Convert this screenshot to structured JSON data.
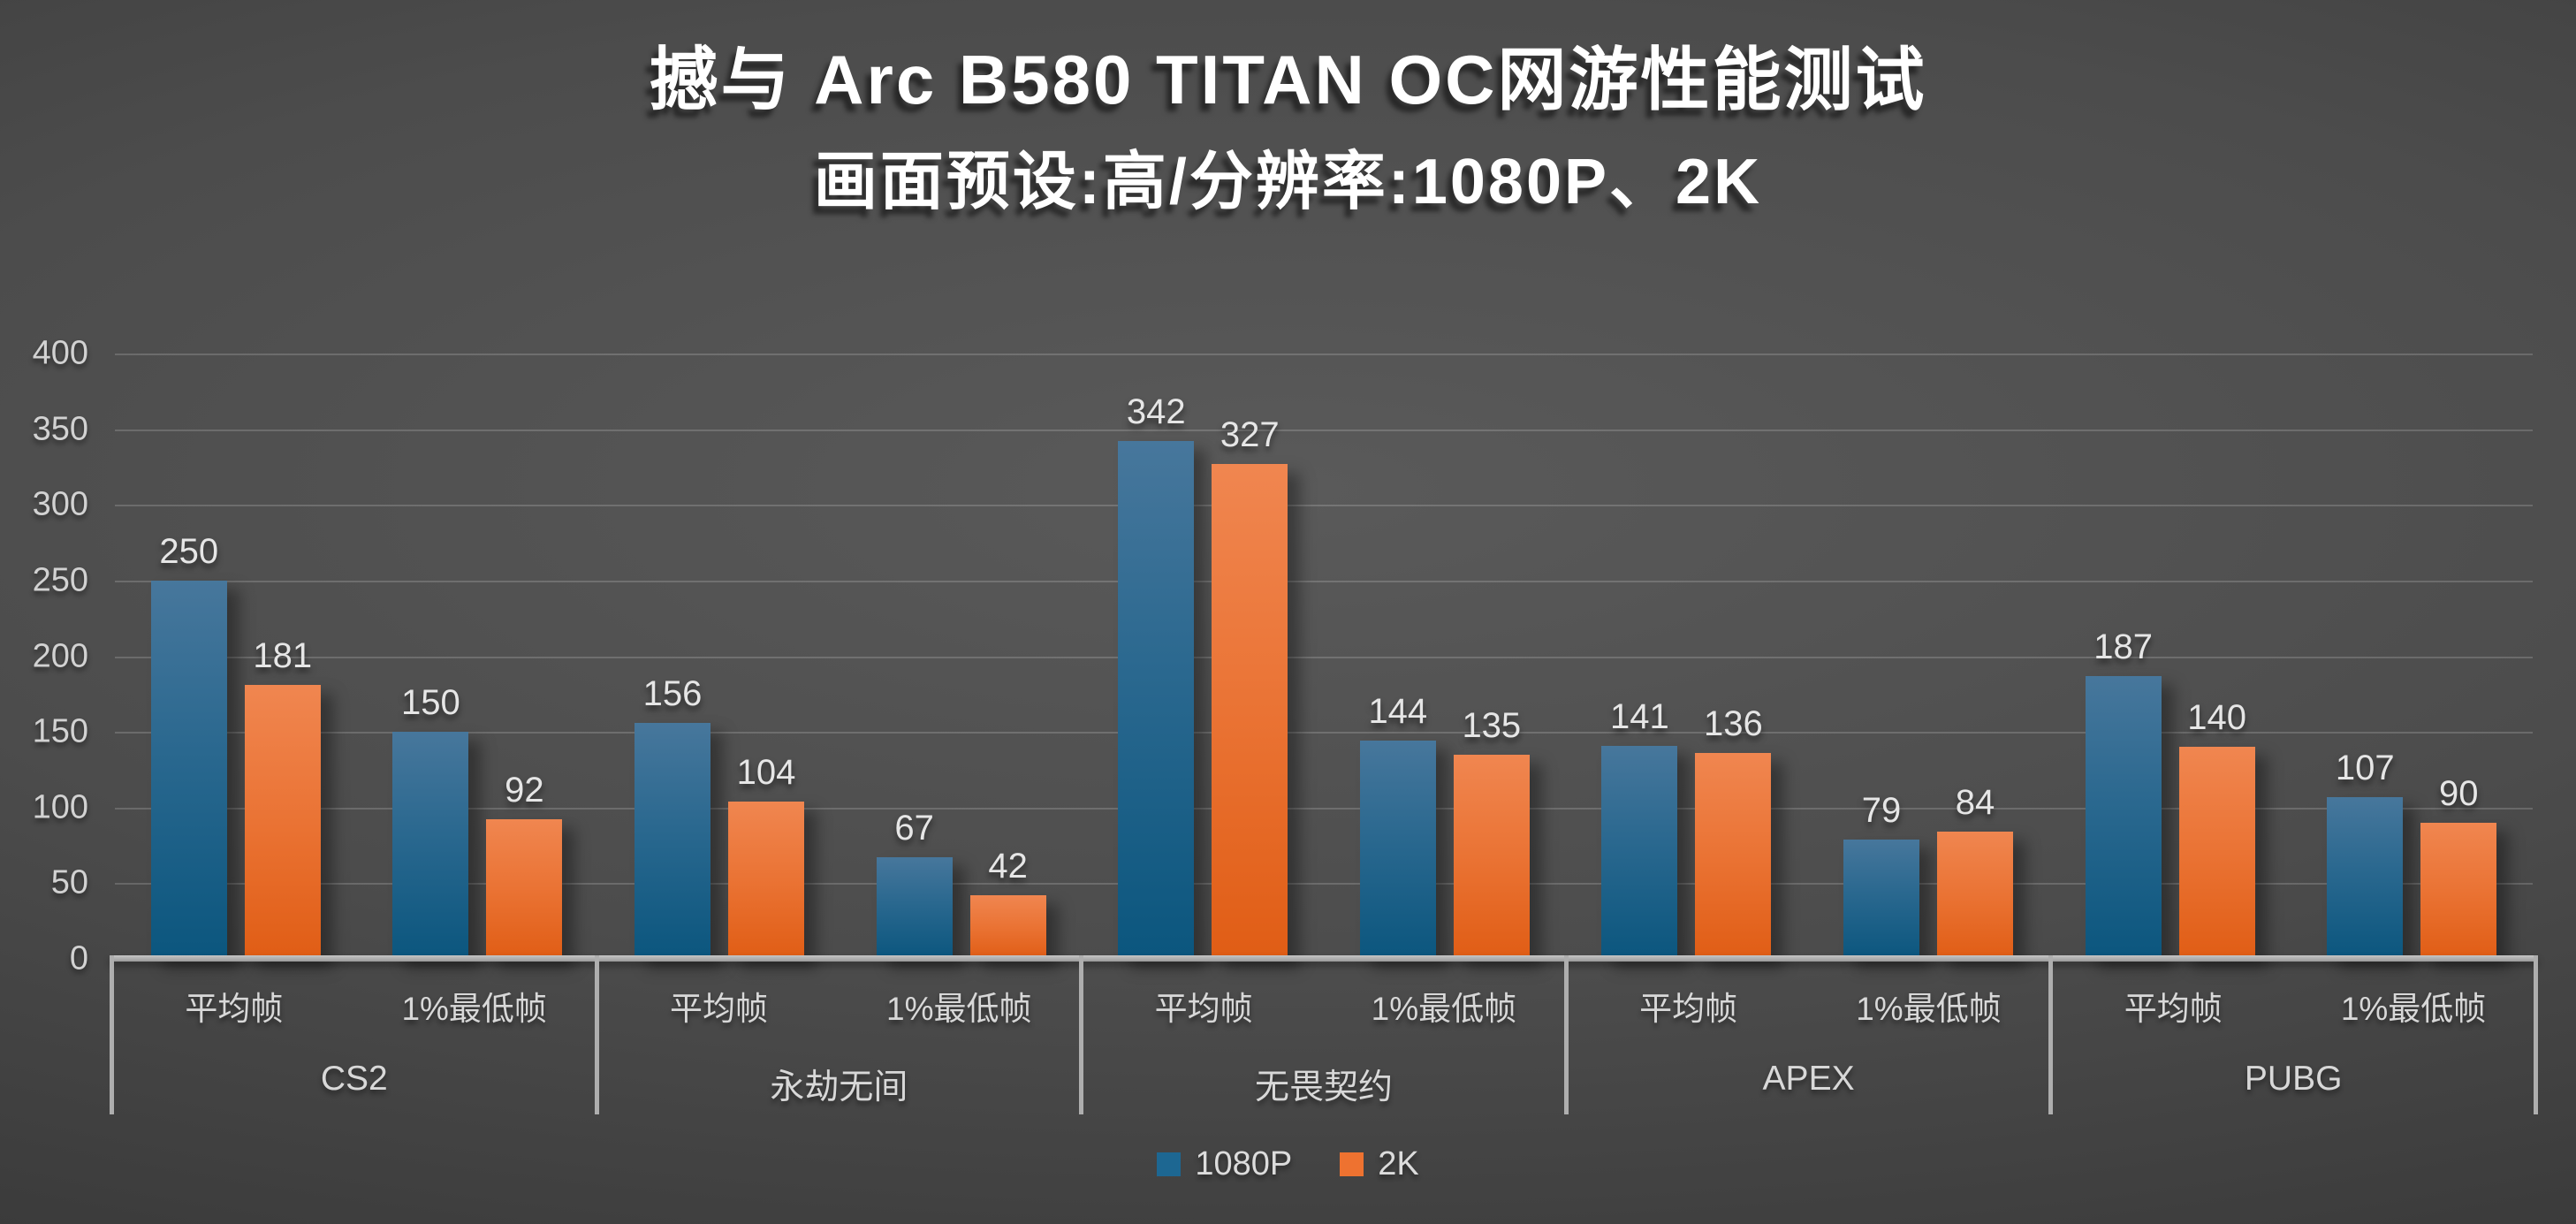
{
  "header": {
    "title": "撼与 Arc B580 TITAN OC网游性能测试",
    "subtitle": "画面预设:高/分辨率:1080P、2K"
  },
  "chart_data": {
    "type": "bar",
    "title": "撼与 Arc B580 TITAN OC网游性能测试",
    "subtitle": "画面预设:高/分辨率:1080P、2K",
    "xlabel": "",
    "ylabel": "",
    "ylim": [
      0,
      400
    ],
    "ytick_step": 50,
    "yticks": [
      0,
      50,
      100,
      150,
      200,
      250,
      300,
      350,
      400
    ],
    "grid": true,
    "legend_position": "bottom",
    "series": [
      {
        "name": "1080P",
        "color": "#1d6792",
        "gradient_top": "#47779c",
        "gradient_bottom": "#0b567e"
      },
      {
        "name": "2K",
        "color": "#ee7230",
        "gradient_top": "#f08650",
        "gradient_bottom": "#e05d15"
      }
    ],
    "metric_labels": [
      "平均帧",
      "1%最低帧"
    ],
    "groups": [
      {
        "category": "CS2",
        "metrics": [
          {
            "label": "平均帧",
            "values": [
              250,
              181
            ]
          },
          {
            "label": "1%最低帧",
            "values": [
              150,
              92
            ]
          }
        ]
      },
      {
        "category": "永劫无间",
        "metrics": [
          {
            "label": "平均帧",
            "values": [
              156,
              104
            ]
          },
          {
            "label": "1%最低帧",
            "values": [
              67,
              42
            ]
          }
        ]
      },
      {
        "category": "无畏契约",
        "metrics": [
          {
            "label": "平均帧",
            "values": [
              342,
              327
            ]
          },
          {
            "label": "1%最低帧",
            "values": [
              144,
              135
            ]
          }
        ]
      },
      {
        "category": "APEX",
        "metrics": [
          {
            "label": "平均帧",
            "values": [
              141,
              136
            ]
          },
          {
            "label": "1%最低帧",
            "values": [
              79,
              84
            ]
          }
        ]
      },
      {
        "category": "PUBG",
        "metrics": [
          {
            "label": "平均帧",
            "values": [
              187,
              140
            ]
          },
          {
            "label": "1%最低帧",
            "values": [
              107,
              90
            ]
          }
        ]
      }
    ]
  },
  "colors": {
    "background_center": "#5a5a5a",
    "background_edge": "#262626",
    "gridline": "rgba(255,255,255,0.17)",
    "axis_line": "#aeaeae",
    "axis_text": "#d2d2d2",
    "value_text": "#e6e6e6",
    "title_text": "#ffffff"
  }
}
